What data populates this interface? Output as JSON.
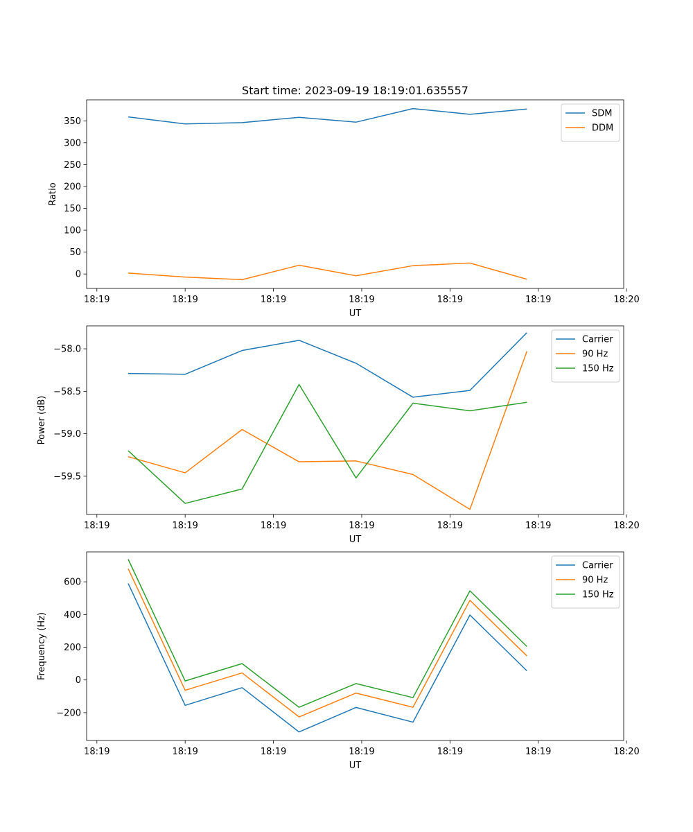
{
  "title": "Start time: 2023-09-19 18:19:01.635557",
  "colors": {
    "blue": "#1f77b4",
    "orange": "#ff7f0e",
    "green": "#2ca02c"
  },
  "chart_data": [
    {
      "type": "line",
      "title": "Start time: 2023-09-19 18:19:01.635557",
      "xlabel": "UT",
      "ylabel": "Ratio",
      "xlim": [
        -0.73,
        8.7
      ],
      "ylim": [
        -33,
        398
      ],
      "xticks": [
        -0.55,
        1.0,
        2.55,
        4.1,
        5.65,
        7.2,
        8.75
      ],
      "xticklabels": [
        "18:19",
        "18:19",
        "18:19",
        "18:19",
        "18:19",
        "18:19",
        "18:20"
      ],
      "yticks": [
        0,
        50,
        100,
        150,
        200,
        250,
        300,
        350
      ],
      "yticklabels": [
        "0",
        "50",
        "100",
        "150",
        "200",
        "250",
        "300",
        "350"
      ],
      "x": [
        0,
        1,
        2,
        3,
        4,
        5,
        6,
        7
      ],
      "legend": "top-right",
      "series": [
        {
          "name": "SDM",
          "color": "#1f77b4",
          "values": [
            359,
            343,
            346,
            358,
            347,
            378,
            365,
            377
          ]
        },
        {
          "name": "DDM",
          "color": "#ff7f0e",
          "values": [
            2,
            -7,
            -13,
            20,
            -4,
            19,
            25,
            -12
          ]
        }
      ]
    },
    {
      "type": "line",
      "title": "",
      "xlabel": "UT",
      "ylabel": "Power (dB)",
      "xlim": [
        -0.73,
        8.7
      ],
      "ylim": [
        -59.95,
        -57.73
      ],
      "xticks": [
        -0.55,
        1.0,
        2.55,
        4.1,
        5.65,
        7.2,
        8.75
      ],
      "xticklabels": [
        "18:19",
        "18:19",
        "18:19",
        "18:19",
        "18:19",
        "18:19",
        "18:20"
      ],
      "yticks": [
        -59.5,
        -59.0,
        -58.5,
        -58.0
      ],
      "yticklabels": [
        "−59.5",
        "−59.0",
        "−58.5",
        "−58.0"
      ],
      "x": [
        0,
        1,
        2,
        3,
        4,
        5,
        6,
        7
      ],
      "legend": "top-right",
      "series": [
        {
          "name": "Carrier",
          "color": "#1f77b4",
          "values": [
            -58.29,
            -58.3,
            -58.02,
            -57.9,
            -58.17,
            -58.57,
            -58.49,
            -57.81
          ]
        },
        {
          "name": "90 Hz",
          "color": "#ff7f0e",
          "values": [
            -59.27,
            -59.46,
            -58.95,
            -59.33,
            -59.32,
            -59.48,
            -59.89,
            -58.03
          ]
        },
        {
          "name": "150 Hz",
          "color": "#2ca02c",
          "values": [
            -59.2,
            -59.82,
            -59.65,
            -58.42,
            -59.52,
            -58.64,
            -58.73,
            -58.63
          ]
        }
      ]
    },
    {
      "type": "line",
      "title": "",
      "xlabel": "UT",
      "ylabel": "Frequency (Hz)",
      "xlim": [
        -0.73,
        8.7
      ],
      "ylim": [
        -370,
        783
      ],
      "xticks": [
        -0.55,
        1.0,
        2.55,
        4.1,
        5.65,
        7.2,
        8.75
      ],
      "xticklabels": [
        "18:19",
        "18:19",
        "18:19",
        "18:19",
        "18:19",
        "18:19",
        "18:20"
      ],
      "yticks": [
        -200,
        0,
        200,
        400,
        600
      ],
      "yticklabels": [
        "−200",
        "0",
        "200",
        "400",
        "600"
      ],
      "x": [
        0,
        1,
        2,
        3,
        4,
        5,
        6,
        7
      ],
      "legend": "top-right",
      "series": [
        {
          "name": "Carrier",
          "color": "#1f77b4",
          "values": [
            590,
            -155,
            -47,
            -318,
            -168,
            -258,
            397,
            56
          ]
        },
        {
          "name": "90 Hz",
          "color": "#ff7f0e",
          "values": [
            680,
            -63,
            43,
            -226,
            -80,
            -167,
            487,
            147
          ]
        },
        {
          "name": "150 Hz",
          "color": "#2ca02c",
          "values": [
            738,
            -6,
            100,
            -167,
            -22,
            -108,
            545,
            205
          ]
        }
      ]
    }
  ]
}
